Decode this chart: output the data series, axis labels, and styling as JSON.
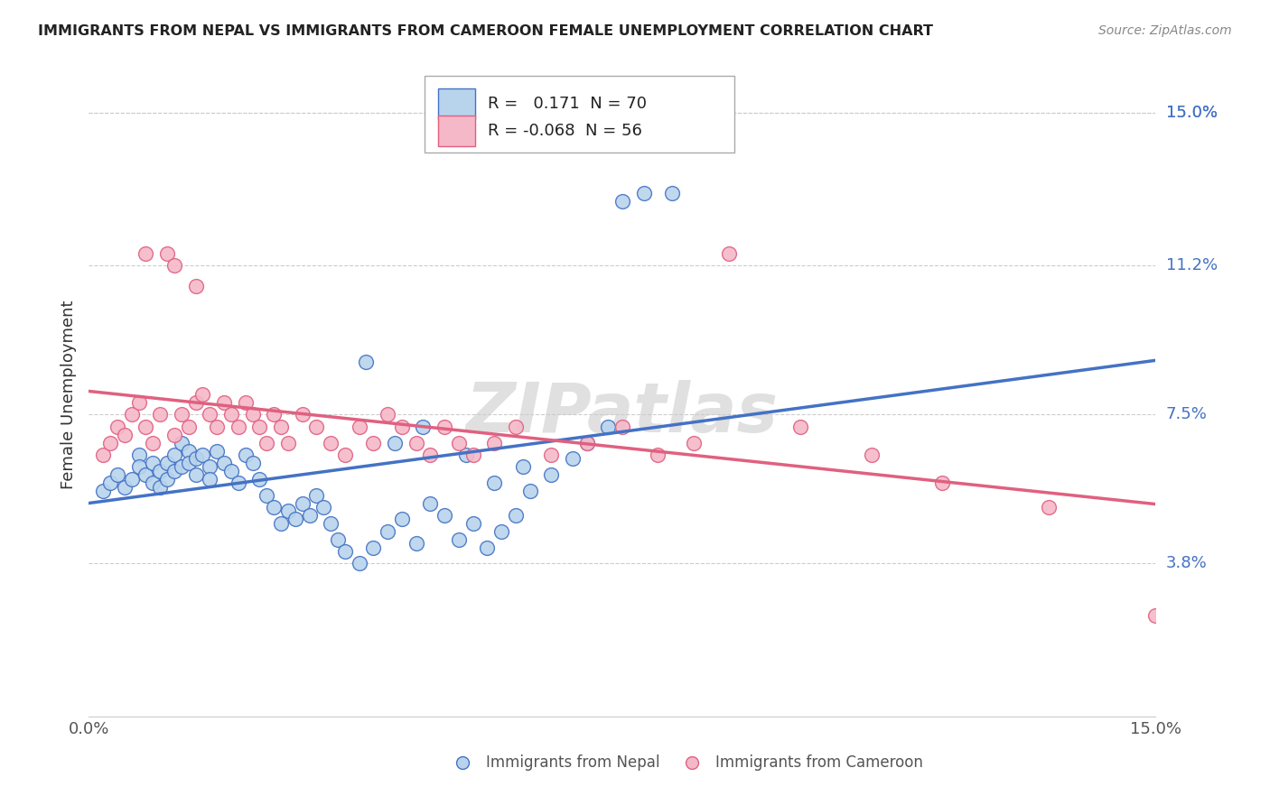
{
  "title": "IMMIGRANTS FROM NEPAL VS IMMIGRANTS FROM CAMEROON FEMALE UNEMPLOYMENT CORRELATION CHART",
  "source": "Source: ZipAtlas.com",
  "ylabel": "Female Unemployment",
  "ytick_labels": [
    "15.0%",
    "11.2%",
    "7.5%",
    "3.8%"
  ],
  "ytick_values": [
    0.15,
    0.112,
    0.075,
    0.038
  ],
  "xlim": [
    0.0,
    0.15
  ],
  "ylim": [
    0.0,
    0.16
  ],
  "color_nepal": "#b8d4ed",
  "color_cameroon": "#f5b8c8",
  "color_line_nepal": "#4472c4",
  "color_line_cameroon": "#e06080",
  "watermark": "ZIPatlas",
  "nepal_x": [
    0.002,
    0.003,
    0.004,
    0.005,
    0.006,
    0.007,
    0.007,
    0.008,
    0.009,
    0.009,
    0.01,
    0.01,
    0.011,
    0.011,
    0.012,
    0.012,
    0.013,
    0.013,
    0.014,
    0.014,
    0.015,
    0.015,
    0.016,
    0.017,
    0.017,
    0.018,
    0.019,
    0.02,
    0.021,
    0.022,
    0.023,
    0.024,
    0.025,
    0.026,
    0.027,
    0.028,
    0.029,
    0.03,
    0.031,
    0.032,
    0.033,
    0.034,
    0.035,
    0.036,
    0.038,
    0.04,
    0.042,
    0.044,
    0.046,
    0.048,
    0.05,
    0.052,
    0.054,
    0.056,
    0.058,
    0.06,
    0.062,
    0.065,
    0.068,
    0.07,
    0.073,
    0.075,
    0.078,
    0.082,
    0.039,
    0.043,
    0.047,
    0.053,
    0.057,
    0.061
  ],
  "nepal_y": [
    0.056,
    0.058,
    0.06,
    0.057,
    0.059,
    0.065,
    0.062,
    0.06,
    0.058,
    0.063,
    0.061,
    0.057,
    0.063,
    0.059,
    0.065,
    0.061,
    0.068,
    0.062,
    0.066,
    0.063,
    0.064,
    0.06,
    0.065,
    0.062,
    0.059,
    0.066,
    0.063,
    0.061,
    0.058,
    0.065,
    0.063,
    0.059,
    0.055,
    0.052,
    0.048,
    0.051,
    0.049,
    0.053,
    0.05,
    0.055,
    0.052,
    0.048,
    0.044,
    0.041,
    0.038,
    0.042,
    0.046,
    0.049,
    0.043,
    0.053,
    0.05,
    0.044,
    0.048,
    0.042,
    0.046,
    0.05,
    0.056,
    0.06,
    0.064,
    0.068,
    0.072,
    0.128,
    0.13,
    0.13,
    0.088,
    0.068,
    0.072,
    0.065,
    0.058,
    0.062
  ],
  "cameroon_x": [
    0.002,
    0.003,
    0.004,
    0.005,
    0.006,
    0.007,
    0.008,
    0.009,
    0.01,
    0.011,
    0.012,
    0.013,
    0.014,
    0.015,
    0.016,
    0.017,
    0.018,
    0.019,
    0.02,
    0.021,
    0.022,
    0.023,
    0.024,
    0.025,
    0.026,
    0.027,
    0.028,
    0.03,
    0.032,
    0.034,
    0.036,
    0.038,
    0.04,
    0.042,
    0.044,
    0.046,
    0.048,
    0.05,
    0.052,
    0.054,
    0.057,
    0.06,
    0.065,
    0.07,
    0.075,
    0.08,
    0.085,
    0.09,
    0.1,
    0.11,
    0.12,
    0.135,
    0.15,
    0.015,
    0.012,
    0.008
  ],
  "cameroon_y": [
    0.065,
    0.068,
    0.072,
    0.07,
    0.075,
    0.078,
    0.072,
    0.068,
    0.075,
    0.115,
    0.07,
    0.075,
    0.072,
    0.078,
    0.08,
    0.075,
    0.072,
    0.078,
    0.075,
    0.072,
    0.078,
    0.075,
    0.072,
    0.068,
    0.075,
    0.072,
    0.068,
    0.075,
    0.072,
    0.068,
    0.065,
    0.072,
    0.068,
    0.075,
    0.072,
    0.068,
    0.065,
    0.072,
    0.068,
    0.065,
    0.068,
    0.072,
    0.065,
    0.068,
    0.072,
    0.065,
    0.068,
    0.115,
    0.072,
    0.065,
    0.058,
    0.052,
    0.025,
    0.107,
    0.112,
    0.115
  ]
}
